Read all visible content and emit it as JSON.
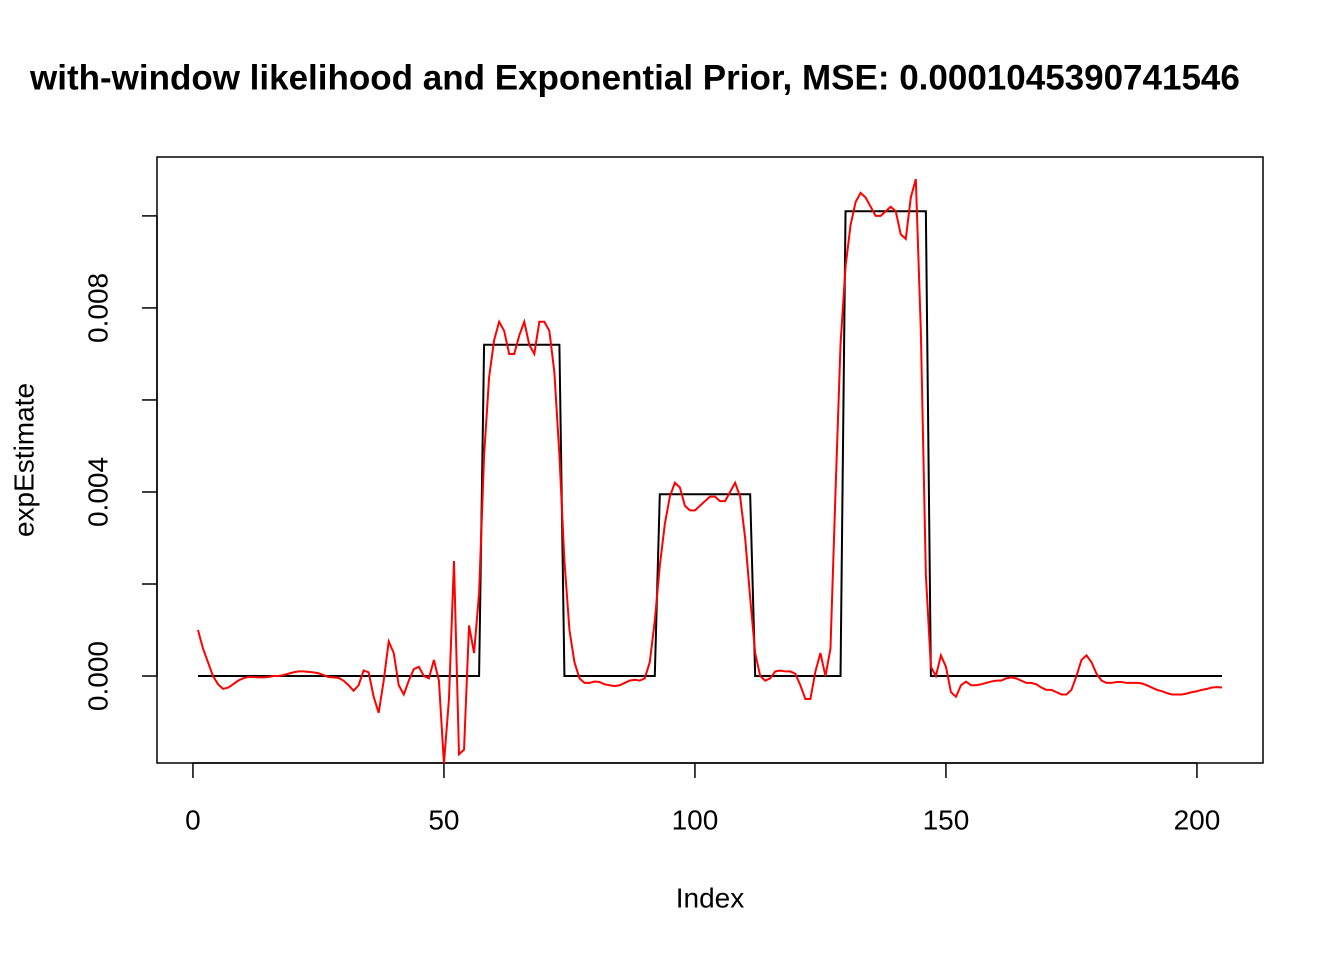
{
  "chart_data": {
    "type": "line",
    "title": "with-window likelihood and Exponential Prior, MSE: 0.0001045390741546",
    "x_label": "Index",
    "y_label": "expEstimate",
    "xlim": [
      -7.16,
      213.16
    ],
    "ylim": [
      -0.00189,
      0.01128
    ],
    "xticks": [
      0,
      50,
      100,
      150,
      200
    ],
    "yticks": [
      {
        "value": 0,
        "label": "0.000"
      },
      {
        "value": 0.002,
        "label": null
      },
      {
        "value": 0.004,
        "label": "0.004"
      },
      {
        "value": 0.006,
        "label": null
      },
      {
        "value": 0.008,
        "label": "0.008"
      },
      {
        "value": 0.01,
        "label": null
      }
    ],
    "grid": false,
    "x": [
      1,
      2,
      3,
      4,
      5,
      6,
      7,
      8,
      9,
      10,
      11,
      12,
      13,
      14,
      15,
      16,
      17,
      18,
      19,
      20,
      21,
      22,
      23,
      24,
      25,
      26,
      27,
      28,
      29,
      30,
      31,
      32,
      33,
      34,
      35,
      36,
      37,
      38,
      39,
      40,
      41,
      42,
      43,
      44,
      45,
      46,
      47,
      48,
      49,
      50,
      51,
      52,
      53,
      54,
      55,
      56,
      57,
      58,
      59,
      60,
      61,
      62,
      63,
      64,
      65,
      66,
      67,
      68,
      69,
      70,
      71,
      72,
      73,
      74,
      75,
      76,
      77,
      78,
      79,
      80,
      81,
      82,
      83,
      84,
      85,
      86,
      87,
      88,
      89,
      90,
      91,
      92,
      93,
      94,
      95,
      96,
      97,
      98,
      99,
      100,
      101,
      102,
      103,
      104,
      105,
      106,
      107,
      108,
      109,
      110,
      111,
      112,
      113,
      114,
      115,
      116,
      117,
      118,
      119,
      120,
      121,
      122,
      123,
      124,
      125,
      126,
      127,
      128,
      129,
      130,
      131,
      132,
      133,
      134,
      135,
      136,
      137,
      138,
      139,
      140,
      141,
      142,
      143,
      144,
      145,
      146,
      147,
      148,
      149,
      150,
      151,
      152,
      153,
      154,
      155,
      156,
      157,
      158,
      159,
      160,
      161,
      162,
      163,
      164,
      165,
      166,
      167,
      168,
      169,
      170,
      171,
      172,
      173,
      174,
      175,
      176,
      177,
      178,
      179,
      180,
      181,
      182,
      183,
      184,
      185,
      186,
      187,
      188,
      189,
      190,
      191,
      192,
      193,
      194,
      195,
      196,
      197,
      198,
      199,
      200,
      201,
      202,
      203,
      204,
      205
    ],
    "series": [
      {
        "color": "#000000",
        "values": [
          0,
          0,
          0,
          0,
          0,
          0,
          0,
          0,
          0,
          0,
          0,
          0,
          0,
          0,
          0,
          0,
          0,
          0,
          0,
          0,
          0,
          0,
          0,
          0,
          0,
          0,
          0,
          0,
          0,
          0,
          0,
          0,
          0,
          0,
          0,
          0,
          0,
          0,
          0,
          0,
          0,
          0,
          0,
          0,
          0,
          0,
          0,
          0,
          0,
          0,
          0,
          0,
          0,
          0,
          0,
          0,
          0,
          0.0072,
          0.0072,
          0.0072,
          0.0072,
          0.0072,
          0.0072,
          0.0072,
          0.0072,
          0.0072,
          0.0072,
          0.0072,
          0.0072,
          0.0072,
          0.0072,
          0.0072,
          0.0072,
          0,
          0,
          0,
          0,
          0,
          0,
          0,
          0,
          0,
          0,
          0,
          0,
          0,
          0,
          0,
          0,
          0,
          0,
          0,
          0.00395,
          0.00395,
          0.00395,
          0.00395,
          0.00395,
          0.00395,
          0.00395,
          0.00395,
          0.00395,
          0.00395,
          0.00395,
          0.00395,
          0.00395,
          0.00395,
          0.00395,
          0.00395,
          0.00395,
          0.00395,
          0.00395,
          0,
          0,
          0,
          0,
          0,
          0,
          0,
          0,
          0,
          0,
          0,
          0,
          0,
          0,
          0,
          0,
          0,
          0,
          0.0101,
          0.0101,
          0.0101,
          0.0101,
          0.0101,
          0.0101,
          0.0101,
          0.0101,
          0.0101,
          0.0101,
          0.0101,
          0.0101,
          0.0101,
          0.0101,
          0.0101,
          0.0101,
          0.0101,
          0,
          0,
          0,
          0,
          0,
          0,
          0,
          0,
          0,
          0,
          0,
          0,
          0,
          0,
          0,
          0,
          0,
          0,
          0,
          0,
          0,
          0,
          0,
          0,
          0,
          0,
          0,
          0,
          0,
          0,
          0,
          0,
          0,
          0,
          0,
          0,
          0,
          0,
          0,
          0,
          0,
          0,
          0,
          0,
          0,
          0,
          0,
          0,
          0,
          0,
          0,
          0,
          0,
          0,
          0,
          0,
          0,
          0,
          0
        ]
      },
      {
        "color": "#ff0000",
        "values": [
          0.001,
          0.0006,
          0.0003,
          0,
          -0.00018,
          -0.00028,
          -0.00025,
          -0.00018,
          -0.0001,
          -5e-05,
          -2e-05,
          -2e-05,
          -3e-05,
          -3e-05,
          -2e-05,
          0,
          0,
          2e-05,
          5e-05,
          8e-05,
          0.0001,
          0.0001,
          9e-05,
          8e-05,
          6e-05,
          2e-05,
          -2e-05,
          -3e-05,
          -4e-05,
          -0.0001,
          -0.0002,
          -0.00032,
          -0.0002,
          0.00012,
          8e-05,
          -0.00045,
          -0.0008,
          -0.0001,
          0.00075,
          0.0005,
          -0.0002,
          -0.0004,
          -0.0001,
          0.00015,
          0.0002,
          0,
          -5e-05,
          0.00035,
          -0.0001,
          -0.0019,
          -0.0005,
          0.0025,
          -0.0017,
          -0.0016,
          0.0011,
          0.0005,
          0.0018,
          0.0048,
          0.0065,
          0.0073,
          0.0077,
          0.0075,
          0.007,
          0.007,
          0.0074,
          0.0077,
          0.0072,
          0.007,
          0.0077,
          0.0077,
          0.0075,
          0.0066,
          0.0048,
          0.0025,
          0.001,
          0.0003,
          -5e-05,
          -0.00015,
          -0.00015,
          -0.00012,
          -0.00013,
          -0.00018,
          -0.0002,
          -0.00022,
          -0.0002,
          -0.00015,
          -0.0001,
          -8e-05,
          -0.0001,
          -5e-05,
          0.0003,
          0.0012,
          0.0024,
          0.0033,
          0.0039,
          0.0042,
          0.0041,
          0.0037,
          0.0036,
          0.0036,
          0.0037,
          0.0038,
          0.0039,
          0.0039,
          0.0038,
          0.0038,
          0.004,
          0.0042,
          0.0039,
          0.003,
          0.0017,
          0.0005,
          0,
          -0.0001,
          -5e-05,
          0.0001,
          0.00012,
          0.0001,
          0.0001,
          5e-05,
          -0.0002,
          -0.0005,
          -0.0005,
          0.0001,
          0.0005,
          0,
          0.0006,
          0.004,
          0.0072,
          0.0089,
          0.0098,
          0.0103,
          0.0105,
          0.0104,
          0.0102,
          0.01,
          0.01,
          0.0101,
          0.0102,
          0.0101,
          0.0096,
          0.0095,
          0.0104,
          0.0108,
          0.0075,
          0.0022,
          0.0002,
          0,
          0.00045,
          0.0002,
          -0.00035,
          -0.00045,
          -0.0002,
          -0.00012,
          -0.0002,
          -0.0002,
          -0.00018,
          -0.00015,
          -0.00012,
          -0.0001,
          -0.0001,
          -5e-05,
          -3e-05,
          -5e-05,
          -0.0001,
          -0.00015,
          -0.00015,
          -0.00018,
          -0.00025,
          -0.0003,
          -0.0003,
          -0.00035,
          -0.0004,
          -0.0004,
          -0.0003,
          0,
          0.00035,
          0.00045,
          0.0003,
          5e-05,
          -0.0001,
          -0.00015,
          -0.00015,
          -0.00013,
          -0.00013,
          -0.00015,
          -0.00015,
          -0.00015,
          -0.00016,
          -0.0002,
          -0.00025,
          -0.0003,
          -0.00033,
          -0.00037,
          -0.0004,
          -0.0004,
          -0.0004,
          -0.00038,
          -0.00035,
          -0.00033,
          -0.0003,
          -0.00028,
          -0.00025,
          -0.00024,
          -0.00025
        ]
      }
    ]
  }
}
